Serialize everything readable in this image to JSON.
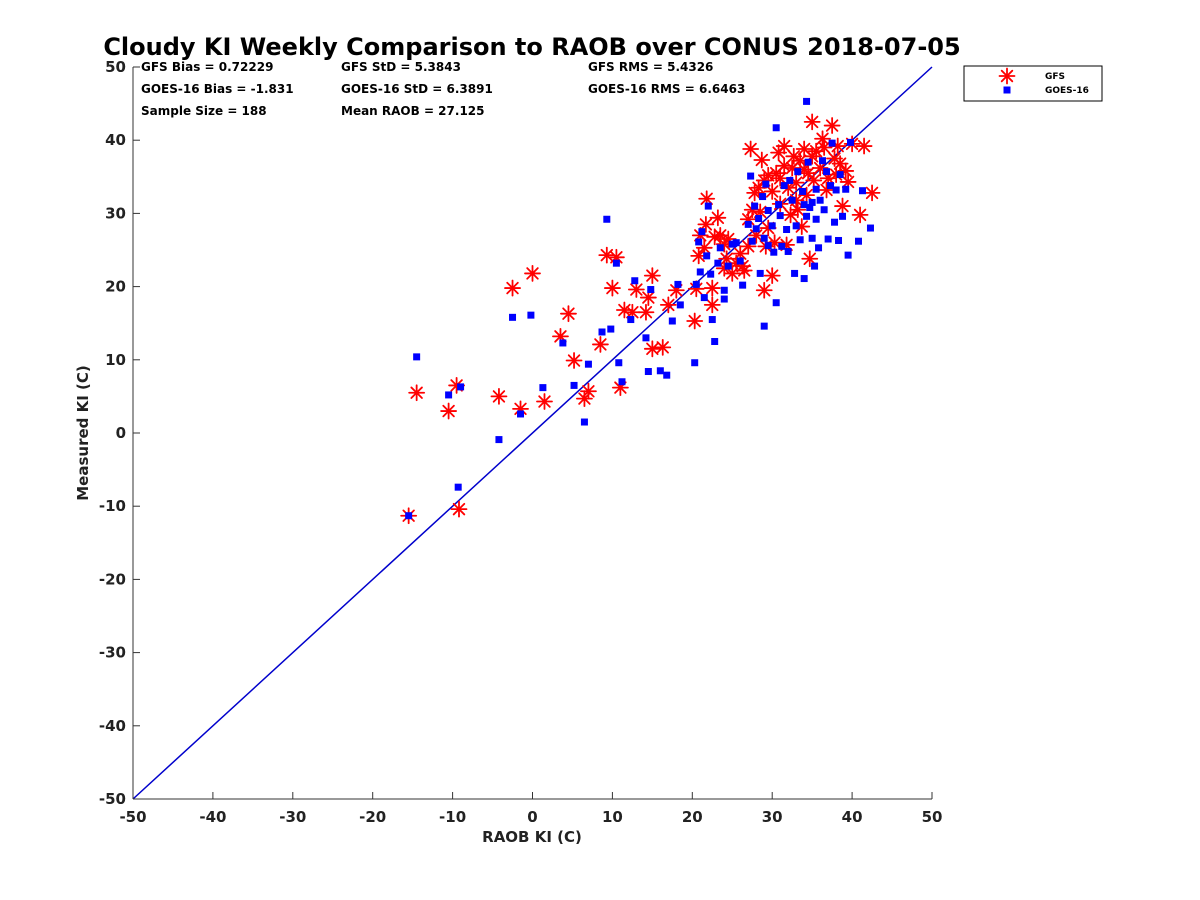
{
  "chart_data": {
    "type": "scatter",
    "title": "Cloudy KI Weekly Comparison to RAOB over CONUS 2018-07-05",
    "xlabel": "RAOB KI (C)",
    "ylabel": "Measured KI (C)",
    "xlim": [
      -50,
      50
    ],
    "ylim": [
      -50,
      50
    ],
    "xticks": [
      "-50",
      "-40",
      "-30",
      "-20",
      "-10",
      "0",
      "10",
      "20",
      "30",
      "40",
      "50"
    ],
    "yticks": [
      "-50",
      "-40",
      "-30",
      "-20",
      "-10",
      "0",
      "10",
      "20",
      "30",
      "40",
      "50"
    ],
    "grid": false,
    "legend_position": "outside-top-right",
    "reference_line": {
      "x": [
        -50,
        50
      ],
      "y": [
        -50,
        50
      ],
      "color": "#0000cc"
    },
    "stats": [
      [
        "GFS Bias = 0.72229",
        "GFS StD = 5.3843",
        "GFS RMS = 5.4326"
      ],
      [
        "GOES-16 Bias = -1.831",
        "GOES-16 StD = 6.3891",
        "GOES-16 RMS = 6.6463"
      ],
      [
        "Sample Size = 188",
        "Mean RAOB = 27.125",
        ""
      ]
    ],
    "series": [
      {
        "name": "GFS",
        "marker": "asterisk",
        "color": "#ff0000",
        "points": [
          [
            -15.5,
            -11.3
          ],
          [
            -14.5,
            5.5
          ],
          [
            -10.5,
            3.0
          ],
          [
            -9.5,
            6.5
          ],
          [
            -9.2,
            -10.4
          ],
          [
            -4.2,
            5.0
          ],
          [
            -2.5,
            19.8
          ],
          [
            -1.5,
            3.3
          ],
          [
            0,
            21.8
          ],
          [
            1.5,
            4.3
          ],
          [
            3.5,
            13.2
          ],
          [
            4.5,
            16.3
          ],
          [
            5.2,
            9.9
          ],
          [
            6.5,
            4.7
          ],
          [
            7,
            5.7
          ],
          [
            8.5,
            12.1
          ],
          [
            9.3,
            24.3
          ],
          [
            10,
            19.8
          ],
          [
            10.5,
            24
          ],
          [
            11,
            6.2
          ],
          [
            11.5,
            16.8
          ],
          [
            12.5,
            16.5
          ],
          [
            13,
            19.6
          ],
          [
            14.2,
            16.5
          ],
          [
            14.5,
            18.5
          ],
          [
            15,
            11.5
          ],
          [
            15,
            21.5
          ],
          [
            16.3,
            11.7
          ],
          [
            17,
            17.5
          ],
          [
            18,
            19.5
          ],
          [
            20.3,
            15.3
          ],
          [
            20.5,
            19.7
          ],
          [
            20.8,
            24.2
          ],
          [
            21,
            27
          ],
          [
            21.5,
            25.3
          ],
          [
            21.7,
            28.5
          ],
          [
            21.8,
            32
          ],
          [
            22.5,
            17.5
          ],
          [
            22.5,
            19.8
          ],
          [
            22.8,
            26.8
          ],
          [
            23.2,
            29.4
          ],
          [
            23.5,
            27
          ],
          [
            24,
            25.8
          ],
          [
            24.3,
            23.8
          ],
          [
            24.5,
            26.5
          ],
          [
            25,
            21.8
          ],
          [
            25.5,
            23.2
          ],
          [
            26,
            24.5
          ],
          [
            26.5,
            22.2
          ],
          [
            27,
            25.5
          ],
          [
            27,
            29.2
          ],
          [
            27.3,
            38.8
          ],
          [
            27.5,
            30.5
          ],
          [
            27.8,
            32.8
          ],
          [
            28,
            27
          ],
          [
            28.3,
            33.5
          ],
          [
            28.5,
            30.2
          ],
          [
            29,
            19.5
          ],
          [
            29,
            34.5
          ],
          [
            29.2,
            25.5
          ],
          [
            29.5,
            35.2
          ],
          [
            29.5,
            28
          ],
          [
            30,
            33
          ],
          [
            30,
            21.5
          ],
          [
            30.3,
            26
          ],
          [
            30.5,
            35.5
          ],
          [
            31,
            31.3
          ],
          [
            31,
            34.8
          ],
          [
            31.5,
            36.5
          ],
          [
            31.5,
            39.2
          ],
          [
            31.8,
            25.7
          ],
          [
            32,
            33.5
          ],
          [
            32.3,
            29.8
          ],
          [
            32.5,
            36.2
          ],
          [
            33,
            34.2
          ],
          [
            33,
            31.8
          ],
          [
            33.5,
            37.2
          ],
          [
            33.7,
            28.2
          ],
          [
            34,
            38.8
          ],
          [
            34,
            36
          ],
          [
            34.3,
            32.5
          ],
          [
            34.5,
            35.5
          ],
          [
            34.7,
            23.8
          ],
          [
            35,
            42.5
          ],
          [
            35,
            37.8
          ],
          [
            35.2,
            34.5
          ],
          [
            35.5,
            38.5
          ],
          [
            36,
            36.2
          ],
          [
            36.5,
            39
          ],
          [
            36.8,
            33.2
          ],
          [
            37,
            34.8
          ],
          [
            37.5,
            42
          ],
          [
            37.8,
            37.5
          ],
          [
            38,
            35.3
          ],
          [
            38.2,
            39.2
          ],
          [
            38.5,
            36.8
          ],
          [
            38.8,
            31
          ],
          [
            39.2,
            35.8
          ],
          [
            39.5,
            34.3
          ],
          [
            40,
            39.5
          ],
          [
            41,
            29.8
          ],
          [
            41.5,
            39.2
          ],
          [
            42.5,
            32.8
          ],
          [
            33.2,
            30.5
          ],
          [
            28.7,
            37.3
          ],
          [
            26.3,
            22.8
          ],
          [
            24,
            22.5
          ],
          [
            36.3,
            40.2
          ],
          [
            32.7,
            37.8
          ],
          [
            30.8,
            38.3
          ]
        ]
      },
      {
        "name": "GOES-16",
        "marker": "square",
        "color": "#0000ff",
        "points": [
          [
            -15.5,
            -11.3
          ],
          [
            -14.5,
            10.4
          ],
          [
            -10.5,
            5.2
          ],
          [
            -9.3,
            -7.4
          ],
          [
            -9,
            6.3
          ],
          [
            -4.2,
            -0.9
          ],
          [
            -2.5,
            15.8
          ],
          [
            -1.5,
            2.6
          ],
          [
            -0.2,
            16.1
          ],
          [
            1.3,
            6.2
          ],
          [
            3.8,
            12.3
          ],
          [
            5.2,
            6.5
          ],
          [
            6.5,
            1.5
          ],
          [
            7,
            9.4
          ],
          [
            8.7,
            13.8
          ],
          [
            9.3,
            29.2
          ],
          [
            9.8,
            14.2
          ],
          [
            10.5,
            23.2
          ],
          [
            10.8,
            9.6
          ],
          [
            11.2,
            7
          ],
          [
            12.3,
            15.5
          ],
          [
            12.8,
            20.8
          ],
          [
            14.2,
            13
          ],
          [
            14.5,
            8.4
          ],
          [
            14.8,
            19.6
          ],
          [
            16,
            8.5
          ],
          [
            16.8,
            7.9
          ],
          [
            17.5,
            15.3
          ],
          [
            18.2,
            20.3
          ],
          [
            18.5,
            17.5
          ],
          [
            20.3,
            9.6
          ],
          [
            20.5,
            20.3
          ],
          [
            20.8,
            26.1
          ],
          [
            21,
            22
          ],
          [
            21.2,
            27.5
          ],
          [
            21.5,
            18.5
          ],
          [
            21.8,
            24.2
          ],
          [
            22,
            31
          ],
          [
            22.3,
            21.7
          ],
          [
            22.5,
            15.5
          ],
          [
            22.8,
            12.5
          ],
          [
            23.2,
            23.2
          ],
          [
            23.5,
            25.3
          ],
          [
            24,
            19.5
          ],
          [
            24,
            18.3
          ],
          [
            24.5,
            22.8
          ],
          [
            25,
            25.8
          ],
          [
            25.5,
            26
          ],
          [
            26,
            23.5
          ],
          [
            26.3,
            20.2
          ],
          [
            27,
            28.5
          ],
          [
            27.3,
            35.1
          ],
          [
            27.5,
            26.2
          ],
          [
            27.8,
            31
          ],
          [
            28,
            27.9
          ],
          [
            28.3,
            29.3
          ],
          [
            28.5,
            21.8
          ],
          [
            28.8,
            32.3
          ],
          [
            29,
            26.6
          ],
          [
            29,
            14.6
          ],
          [
            29.2,
            34
          ],
          [
            29.5,
            25.6
          ],
          [
            29.5,
            30.4
          ],
          [
            30,
            28.3
          ],
          [
            30.2,
            24.7
          ],
          [
            30.5,
            41.7
          ],
          [
            30.5,
            17.8
          ],
          [
            30.8,
            31.2
          ],
          [
            31,
            29.7
          ],
          [
            31.2,
            25.5
          ],
          [
            31.5,
            33.8
          ],
          [
            31.8,
            27.8
          ],
          [
            32,
            24.8
          ],
          [
            32.2,
            34.5
          ],
          [
            32.5,
            31.8
          ],
          [
            32.8,
            21.8
          ],
          [
            33,
            28.3
          ],
          [
            33.2,
            35.7
          ],
          [
            33.5,
            26.4
          ],
          [
            33.8,
            33
          ],
          [
            34,
            31.2
          ],
          [
            34,
            21.1
          ],
          [
            34.3,
            45.3
          ],
          [
            34.3,
            29.6
          ],
          [
            34.5,
            37
          ],
          [
            34.7,
            30.8
          ],
          [
            35,
            26.6
          ],
          [
            35,
            31.5
          ],
          [
            35.3,
            22.8
          ],
          [
            35.5,
            33.3
          ],
          [
            35.5,
            29.2
          ],
          [
            35.8,
            25.3
          ],
          [
            36,
            31.8
          ],
          [
            36.3,
            37.2
          ],
          [
            36.5,
            30.5
          ],
          [
            36.8,
            35.7
          ],
          [
            37,
            26.5
          ],
          [
            37.3,
            33.8
          ],
          [
            37.5,
            39.6
          ],
          [
            37.8,
            28.8
          ],
          [
            38,
            33.2
          ],
          [
            38.3,
            26.3
          ],
          [
            38.5,
            35.3
          ],
          [
            38.8,
            29.6
          ],
          [
            39.2,
            33.3
          ],
          [
            39.5,
            24.3
          ],
          [
            39.8,
            39.7
          ],
          [
            40.8,
            26.2
          ],
          [
            41.3,
            33.1
          ],
          [
            42.3,
            28
          ]
        ]
      }
    ]
  }
}
